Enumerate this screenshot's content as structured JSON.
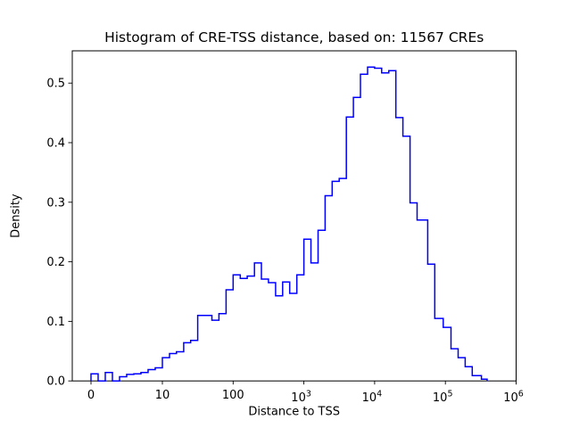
{
  "chart_data": {
    "type": "bar",
    "subtype": "histogram-step",
    "title": "Histogram of CRE-TSS distance, based on: 11567 CREs",
    "xlabel": "Distance to TSS",
    "ylabel": "Density",
    "sample_count": 11567,
    "line_color": "#0000ff",
    "background_color": "#ffffff",
    "xscale": "symlog",
    "grid": false,
    "legend": null,
    "ylim": [
      0,
      0.5535
    ],
    "xlim": [
      0,
      1000000
    ],
    "bin_edges": [
      0,
      1,
      2,
      3,
      4,
      5,
      6,
      7,
      8,
      9,
      10,
      12.6,
      15.8,
      20,
      25.1,
      31.6,
      39.8,
      50.1,
      63.1,
      79.4,
      100,
      126,
      158,
      200,
      251,
      316,
      398,
      501,
      631,
      794,
      1000,
      1259,
      1585,
      1995,
      2512,
      3162,
      3981,
      5012,
      6310,
      7943,
      10000,
      12589,
      15849,
      19953,
      25119,
      31623,
      39811,
      56234,
      70795,
      93325,
      120226,
      151356,
      190546,
      239883,
      323594,
      389045
    ],
    "densities": [
      0.012,
      0,
      0.014,
      0,
      0.007,
      0.011,
      0.012,
      0.014,
      0.019,
      0.022,
      0.039,
      0.046,
      0.049,
      0.064,
      0.068,
      0.11,
      0.11,
      0.102,
      0.113,
      0.153,
      0.178,
      0.172,
      0.176,
      0.198,
      0.171,
      0.165,
      0.143,
      0.166,
      0.147,
      0.178,
      0.238,
      0.198,
      0.253,
      0.311,
      0.335,
      0.34,
      0.443,
      0.476,
      0.515,
      0.527,
      0.525,
      0.517,
      0.521,
      0.442,
      0.411,
      0.299,
      0.27,
      0.196,
      0.105,
      0.09,
      0.054,
      0.039,
      0.024,
      0.009,
      0.003
    ]
  },
  "x_axis": {
    "label": "Distance to TSS",
    "ticks": [
      {
        "text": "0",
        "exp": null,
        "value": 0
      },
      {
        "text": "10",
        "exp": null,
        "value": 10
      },
      {
        "text": "100",
        "exp": null,
        "value": 100
      },
      {
        "text": "10",
        "exp": "3",
        "value": 1000
      },
      {
        "text": "10",
        "exp": "4",
        "value": 10000
      },
      {
        "text": "10",
        "exp": "5",
        "value": 100000
      },
      {
        "text": "10",
        "exp": "6",
        "value": 1000000
      }
    ]
  },
  "y_axis": {
    "label": "Density",
    "ticks": [
      {
        "text": "0.0",
        "value": 0.0
      },
      {
        "text": "0.1",
        "value": 0.1
      },
      {
        "text": "0.2",
        "value": 0.2
      },
      {
        "text": "0.3",
        "value": 0.3
      },
      {
        "text": "0.4",
        "value": 0.4
      },
      {
        "text": "0.5",
        "value": 0.5
      }
    ]
  }
}
